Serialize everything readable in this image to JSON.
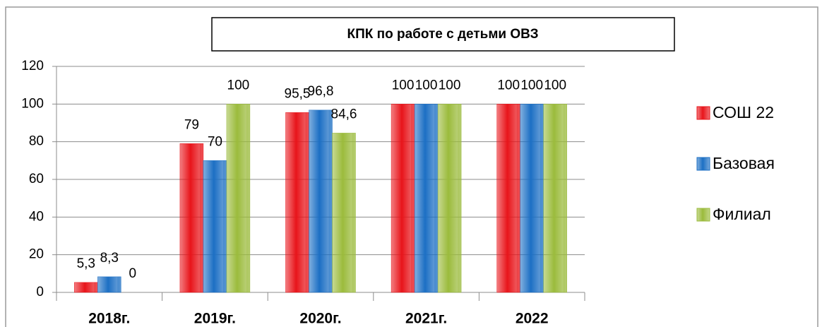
{
  "chart_data": {
    "type": "bar",
    "title": "КПК по работе с детьми ОВЗ",
    "categories": [
      "2018г.",
      "2019г.",
      "2020г.",
      "2021г.",
      "2022"
    ],
    "series": [
      {
        "name": "СОШ 22",
        "color": "#e8141a",
        "values": [
          5.3,
          79,
          95.5,
          100,
          100
        ],
        "value_labels": [
          "5,3",
          "79",
          "95,5",
          "100",
          "100"
        ]
      },
      {
        "name": "Базовая",
        "color": "#1c6fc4",
        "values": [
          8.3,
          70,
          96.8,
          100,
          100
        ],
        "value_labels": [
          "8,3",
          "70",
          "96,8",
          "100",
          "100"
        ]
      },
      {
        "name": "Филиал",
        "color": "#9bbb3c",
        "values": [
          0,
          100,
          84.6,
          100,
          100
        ],
        "value_labels": [
          "0",
          "100",
          "84,6",
          "100",
          "100"
        ]
      }
    ],
    "ylim": [
      0,
      120
    ],
    "yticks": [
      0,
      20,
      40,
      60,
      80,
      100,
      120
    ],
    "grid": true,
    "legend": "right"
  }
}
